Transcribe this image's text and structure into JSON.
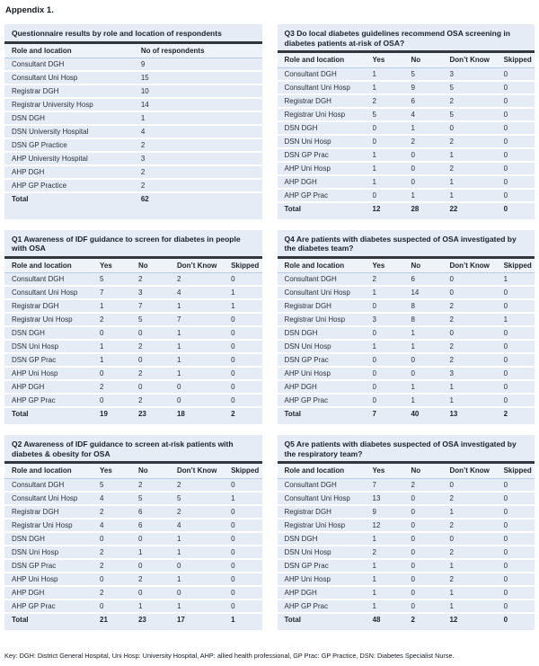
{
  "page": {
    "heading": "Appendix 1.",
    "footer_key": "Key: DGH: District General Hospital, Uni Hosp: University Hospital, AHP: allied health professional, GP Prac: GP Practice, DSN: Diabetes Specialist Nurse."
  },
  "colors": {
    "table_background": "#e6ecf6",
    "header_row_background": "#eef2f9",
    "row_separator": "#ffffff",
    "title_rule": "#33383f",
    "text": "#2b313a"
  },
  "tables": [
    {
      "id": "respondents",
      "title": "Questionnaire results by role and location of respondents",
      "columns": [
        "Role and location",
        "No of respondents"
      ],
      "rows": [
        [
          "Consultant DGH",
          "9"
        ],
        [
          "Consultant Uni Hosp",
          "15"
        ],
        [
          "Registrar DGH",
          "10"
        ],
        [
          "Registrar University Hosp",
          "14"
        ],
        [
          "DSN DGH",
          "1"
        ],
        [
          "DSN University Hospital",
          "4"
        ],
        [
          "DSN GP Practice",
          "2"
        ],
        [
          "AHP University Hospital",
          "3"
        ],
        [
          "AHP DGH",
          "2"
        ],
        [
          "AHP GP Practice",
          "2"
        ],
        [
          "Total",
          "62"
        ]
      ]
    },
    {
      "id": "q1",
      "title": "Q1 Awareness of IDF guidance to screen for diabetes in people with OSA",
      "columns": [
        "Role and location",
        "Yes",
        "No",
        "Don’t Know",
        "Skipped"
      ],
      "rows": [
        [
          "Consultant DGH",
          "5",
          "2",
          "2",
          "0"
        ],
        [
          "Consultant Uni Hosp",
          "7",
          "3",
          "4",
          "1"
        ],
        [
          "Registrar DGH",
          "1",
          "7",
          "1",
          "1"
        ],
        [
          "Registrar Uni Hosp",
          "2",
          "5",
          "7",
          "0"
        ],
        [
          "DSN DGH",
          "0",
          "0",
          "1",
          "0"
        ],
        [
          "DSN Uni Hosp",
          "1",
          "2",
          "1",
          "0"
        ],
        [
          "DSN GP Prac",
          "1",
          "0",
          "1",
          "0"
        ],
        [
          "AHP Uni Hosp",
          "0",
          "2",
          "1",
          "0"
        ],
        [
          "AHP DGH",
          "2",
          "0",
          "0",
          "0"
        ],
        [
          "AHP GP Prac",
          "0",
          "2",
          "0",
          "0"
        ],
        [
          "Total",
          "19",
          "23",
          "18",
          "2"
        ]
      ]
    },
    {
      "id": "q2",
      "title": "Q2 Awareness of IDF guidance to screen at-risk patients with diabetes & obesity for OSA",
      "columns": [
        "Role and location",
        "Yes",
        "No",
        "Don’t Know",
        "Skipped"
      ],
      "rows": [
        [
          "Consultant DGH",
          "5",
          "2",
          "2",
          "0"
        ],
        [
          "Consultant Uni Hosp",
          "4",
          "5",
          "5",
          "1"
        ],
        [
          "Registrar DGH",
          "2",
          "6",
          "2",
          "0"
        ],
        [
          "Registrar Uni Hosp",
          "4",
          "6",
          "4",
          "0"
        ],
        [
          "DSN DGH",
          "0",
          "0",
          "1",
          "0"
        ],
        [
          "DSN Uni Hosp",
          "2",
          "1",
          "1",
          "0"
        ],
        [
          "DSN GP Prac",
          "2",
          "0",
          "0",
          "0"
        ],
        [
          "AHP Uni Hosp",
          "0",
          "2",
          "1",
          "0"
        ],
        [
          "AHP DGH",
          "2",
          "0",
          "0",
          "0"
        ],
        [
          "AHP GP Prac",
          "0",
          "1",
          "1",
          "0"
        ],
        [
          "Total",
          "21",
          "23",
          "17",
          "1"
        ]
      ]
    },
    {
      "id": "q3",
      "title": "Q3 Do local diabetes guidelines recommend OSA screening in diabetes patients at-risk of OSA?",
      "columns": [
        "Role and location",
        "Yes",
        "No",
        "Don’t Know",
        "Skipped"
      ],
      "rows": [
        [
          "Consultant DGH",
          "1",
          "5",
          "3",
          "0"
        ],
        [
          "Consultant Uni Hosp",
          "1",
          "9",
          "5",
          "0"
        ],
        [
          "Registrar DGH",
          "2",
          "6",
          "2",
          "0"
        ],
        [
          "Registrar Uni Hosp",
          "5",
          "4",
          "5",
          "0"
        ],
        [
          "DSN DGH",
          "0",
          "1",
          "0",
          "0"
        ],
        [
          "DSN Uni Hosp",
          "0",
          "2",
          "2",
          "0"
        ],
        [
          "DSN GP Prac",
          "1",
          "0",
          "1",
          "0"
        ],
        [
          "AHP Uni Hosp",
          "1",
          "0",
          "2",
          "0"
        ],
        [
          "AHP DGH",
          "1",
          "0",
          "1",
          "0"
        ],
        [
          "AHP GP Prac",
          "0",
          "1",
          "1",
          "0"
        ],
        [
          "Total",
          "12",
          "28",
          "22",
          "0"
        ]
      ]
    },
    {
      "id": "q4",
      "title": "Q4 Are patients with diabetes suspected of OSA investigated by the diabetes team?",
      "columns": [
        "Role and location",
        "Yes",
        "No",
        "Don’t Know",
        "Skipped"
      ],
      "rows": [
        [
          "Consultant DGH",
          "2",
          "6",
          "0",
          "1"
        ],
        [
          "Consultant Uni Hosp",
          "1",
          "14",
          "0",
          "0"
        ],
        [
          "Registrar DGH",
          "0",
          "8",
          "2",
          "0"
        ],
        [
          "Registrar Uni Hosp",
          "3",
          "8",
          "2",
          "1"
        ],
        [
          "DSN DGH",
          "0",
          "1",
          "0",
          "0"
        ],
        [
          "DSN Uni Hosp",
          "1",
          "1",
          "2",
          "0"
        ],
        [
          "DSN GP Prac",
          "0",
          "0",
          "2",
          "0"
        ],
        [
          "AHP Uni Hosp",
          "0",
          "0",
          "3",
          "0"
        ],
        [
          "AHP DGH",
          "0",
          "1",
          "1",
          "0"
        ],
        [
          "AHP GP Prac",
          "0",
          "1",
          "1",
          "0"
        ],
        [
          "Total",
          "7",
          "40",
          "13",
          "2"
        ]
      ]
    },
    {
      "id": "q5",
      "title": "Q5 Are patients with diabetes suspected of OSA investigated by the respiratory team?",
      "columns": [
        "Role and location",
        "Yes",
        "No",
        "Don’t Know",
        "Skipped"
      ],
      "rows": [
        [
          "Consultant DGH",
          "7",
          "2",
          "0",
          "0"
        ],
        [
          "Consultant Uni Hosp",
          "13",
          "0",
          "2",
          "0"
        ],
        [
          "Registrar DGH",
          "9",
          "0",
          "1",
          "0"
        ],
        [
          "Registrar Uni Hosp",
          "12",
          "0",
          "2",
          "0"
        ],
        [
          "DSN DGH",
          "1",
          "0",
          "0",
          "0"
        ],
        [
          "DSN Uni Hosp",
          "2",
          "0",
          "2",
          "0"
        ],
        [
          "DSN GP Prac",
          "1",
          "0",
          "1",
          "0"
        ],
        [
          "AHP Uni Hosp",
          "1",
          "0",
          "2",
          "0"
        ],
        [
          "AHP DGH",
          "1",
          "0",
          "1",
          "0"
        ],
        [
          "AHP GP Prac",
          "1",
          "0",
          "1",
          "0"
        ],
        [
          "Total",
          "48",
          "2",
          "12",
          "0"
        ]
      ]
    }
  ]
}
